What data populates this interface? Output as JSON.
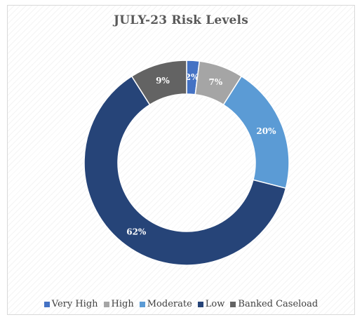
{
  "chart_data": {
    "type": "pie",
    "variant": "donut",
    "title": "JULY-23 Risk Levels",
    "categories": [
      "Very High",
      "High",
      "Moderate",
      "Low",
      "Banked Caseload"
    ],
    "values": [
      2,
      7,
      20,
      62,
      9
    ],
    "data_labels": [
      "2%",
      "7%",
      "20%",
      "62%",
      "9%"
    ],
    "colors": [
      "#4472c4",
      "#a5a5a5",
      "#5b9bd5",
      "#264478",
      "#636363"
    ],
    "legend_position": "bottom",
    "unit": "%"
  }
}
